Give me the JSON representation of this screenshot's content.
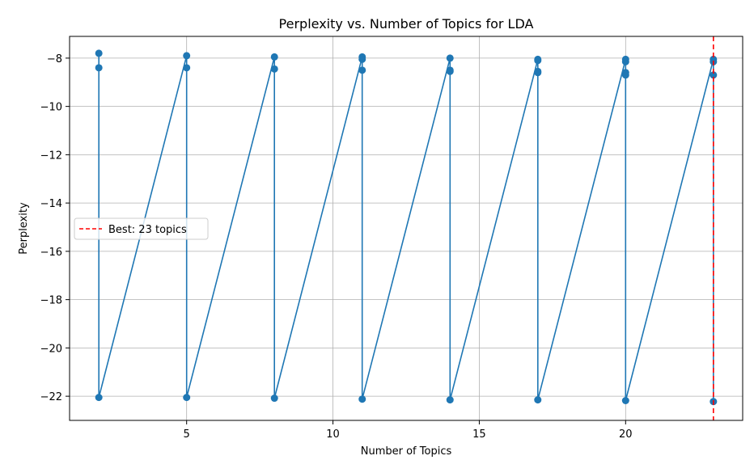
{
  "chart_data": {
    "type": "line",
    "title": "Perplexity vs. Number of Topics for LDA",
    "xlabel": "Number of Topics",
    "ylabel": "Perplexity",
    "xlim": [
      1.0,
      24.0
    ],
    "ylim": [
      -23.0,
      -7.1
    ],
    "xticks": [
      5,
      10,
      15,
      20
    ],
    "yticks": [
      -8,
      -10,
      -12,
      -14,
      -16,
      -18,
      -20,
      -22
    ],
    "grid": true,
    "legend_position": "center-left",
    "series": [
      {
        "color": "#1f77b4",
        "marker": "circle",
        "points": [
          {
            "x": 2,
            "y": -7.8
          },
          {
            "x": 2,
            "y": -8.4
          },
          {
            "x": 2,
            "y": -22.05
          },
          {
            "x": 5,
            "y": -7.9
          },
          {
            "x": 5,
            "y": -8.4
          },
          {
            "x": 5,
            "y": -22.05
          },
          {
            "x": 8,
            "y": -7.95
          },
          {
            "x": 8,
            "y": -8.45
          },
          {
            "x": 8,
            "y": -22.08
          },
          {
            "x": 11,
            "y": -7.95
          },
          {
            "x": 11,
            "y": -8.05
          },
          {
            "x": 11,
            "y": -8.5
          },
          {
            "x": 11,
            "y": -22.12
          },
          {
            "x": 14,
            "y": -8.0
          },
          {
            "x": 14,
            "y": -8.5
          },
          {
            "x": 14,
            "y": -8.55
          },
          {
            "x": 14,
            "y": -22.15
          },
          {
            "x": 17,
            "y": -8.05
          },
          {
            "x": 17,
            "y": -8.1
          },
          {
            "x": 17,
            "y": -8.55
          },
          {
            "x": 17,
            "y": -8.6
          },
          {
            "x": 17,
            "y": -22.15
          },
          {
            "x": 20,
            "y": -8.05
          },
          {
            "x": 20,
            "y": -8.15
          },
          {
            "x": 20,
            "y": -8.6
          },
          {
            "x": 20,
            "y": -8.7
          },
          {
            "x": 20,
            "y": -22.18
          },
          {
            "x": 23,
            "y": -8.05
          },
          {
            "x": 23,
            "y": -8.15
          },
          {
            "x": 23,
            "y": -8.7
          },
          {
            "x": 23,
            "y": -22.22
          }
        ]
      }
    ],
    "best_line": {
      "x": 23,
      "label": "Best: 23 topics",
      "color": "#ff0000",
      "style": "dashed"
    }
  }
}
